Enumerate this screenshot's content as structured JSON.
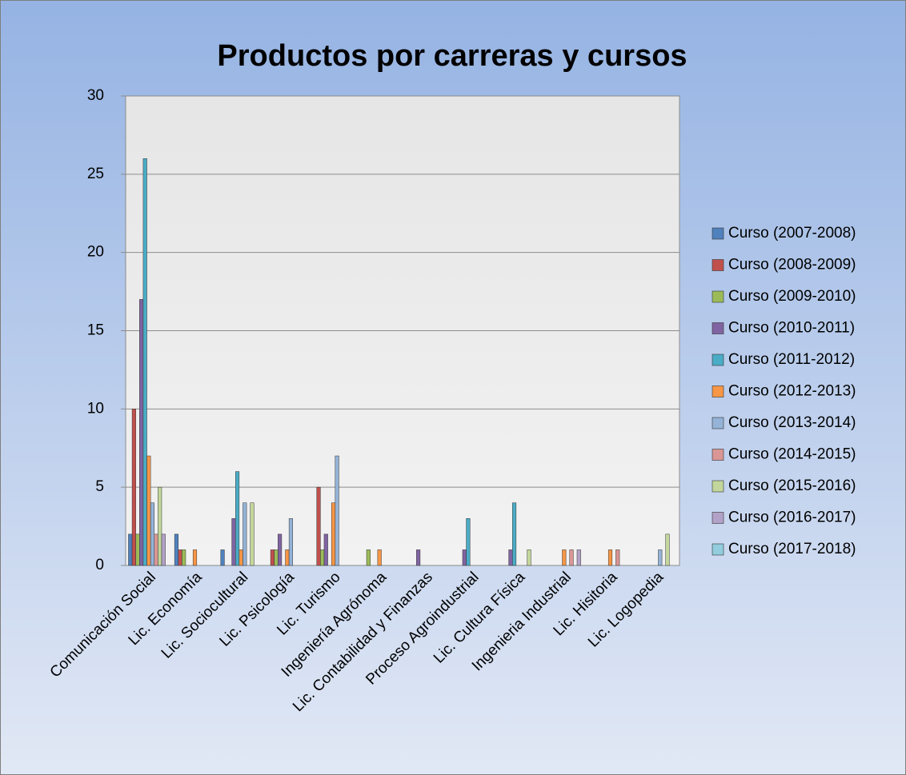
{
  "chart_data": {
    "type": "bar",
    "title": "Productos por carreras y cursos",
    "categories": [
      "Comunicación Social",
      "Lic. Economía",
      "Lic. Sociocultural",
      "Lic. Psicología",
      "Lic. Turismo",
      "Ingeniería Agrónoma",
      "Lic. Contabilidad y Finanzas",
      "Proceso Agroindustrial",
      "Lic. Cultura Física",
      "Ingenieria Industrial",
      "Lic. Hisitoria",
      "Lic. Logopedia"
    ],
    "series": [
      {
        "name": "Curso (2007-2008)",
        "color": "#4F81BD",
        "values": [
          2,
          2,
          1,
          0,
          0,
          0,
          0,
          0,
          0,
          0,
          0,
          0
        ]
      },
      {
        "name": "Curso (2008-2009)",
        "color": "#C0504D",
        "values": [
          10,
          1,
          0,
          1,
          5,
          0,
          0,
          0,
          0,
          0,
          0,
          0
        ]
      },
      {
        "name": "Curso (2009-2010)",
        "color": "#9BBB59",
        "values": [
          2,
          1,
          0,
          1,
          1,
          1,
          0,
          0,
          0,
          0,
          0,
          0
        ]
      },
      {
        "name": "Curso (2010-2011)",
        "color": "#8064A2",
        "values": [
          17,
          0,
          3,
          2,
          2,
          0,
          1,
          1,
          1,
          0,
          0,
          0
        ]
      },
      {
        "name": "Curso (2011-2012)",
        "color": "#4BACC6",
        "values": [
          26,
          0,
          6,
          0,
          0,
          0,
          0,
          3,
          4,
          0,
          0,
          0
        ]
      },
      {
        "name": "Curso (2012-2013)",
        "color": "#F79646",
        "values": [
          7,
          1,
          1,
          1,
          4,
          1,
          0,
          0,
          0,
          1,
          1,
          0
        ]
      },
      {
        "name": "Curso (2013-2014)",
        "color": "#95B3D7",
        "values": [
          4,
          0,
          4,
          3,
          7,
          0,
          0,
          0,
          0,
          0,
          0,
          1
        ]
      },
      {
        "name": "Curso (2014-2015)",
        "color": "#D99694",
        "values": [
          2,
          0,
          0,
          0,
          0,
          0,
          0,
          0,
          0,
          1,
          1,
          0
        ]
      },
      {
        "name": "Curso (2015-2016)",
        "color": "#C3D69B",
        "values": [
          5,
          0,
          4,
          0,
          0,
          0,
          0,
          0,
          1,
          0,
          0,
          2
        ]
      },
      {
        "name": "Curso (2016-2017)",
        "color": "#B3A2C7",
        "values": [
          2,
          0,
          0,
          0,
          0,
          0,
          0,
          0,
          0,
          1,
          0,
          0
        ]
      },
      {
        "name": "Curso (2017-2018)",
        "color": "#93CDDD",
        "values": [
          0,
          0,
          0,
          0,
          0,
          0,
          0,
          0,
          0,
          0,
          0,
          0
        ]
      }
    ],
    "ylim": [
      0,
      30
    ],
    "yticks": [
      0,
      5,
      10,
      15,
      20,
      25,
      30
    ],
    "grid": true,
    "legend": "right"
  }
}
